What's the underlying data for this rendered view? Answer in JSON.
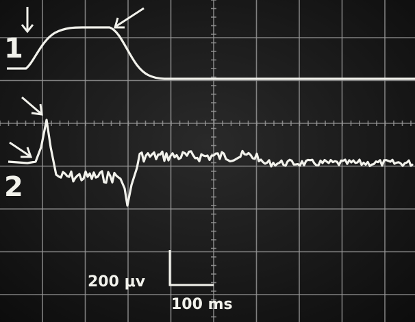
{
  "traces": {
    "first": "1",
    "second": "2"
  },
  "scale_bar": {
    "voltage": "200 μv",
    "time": "100 ms"
  }
}
